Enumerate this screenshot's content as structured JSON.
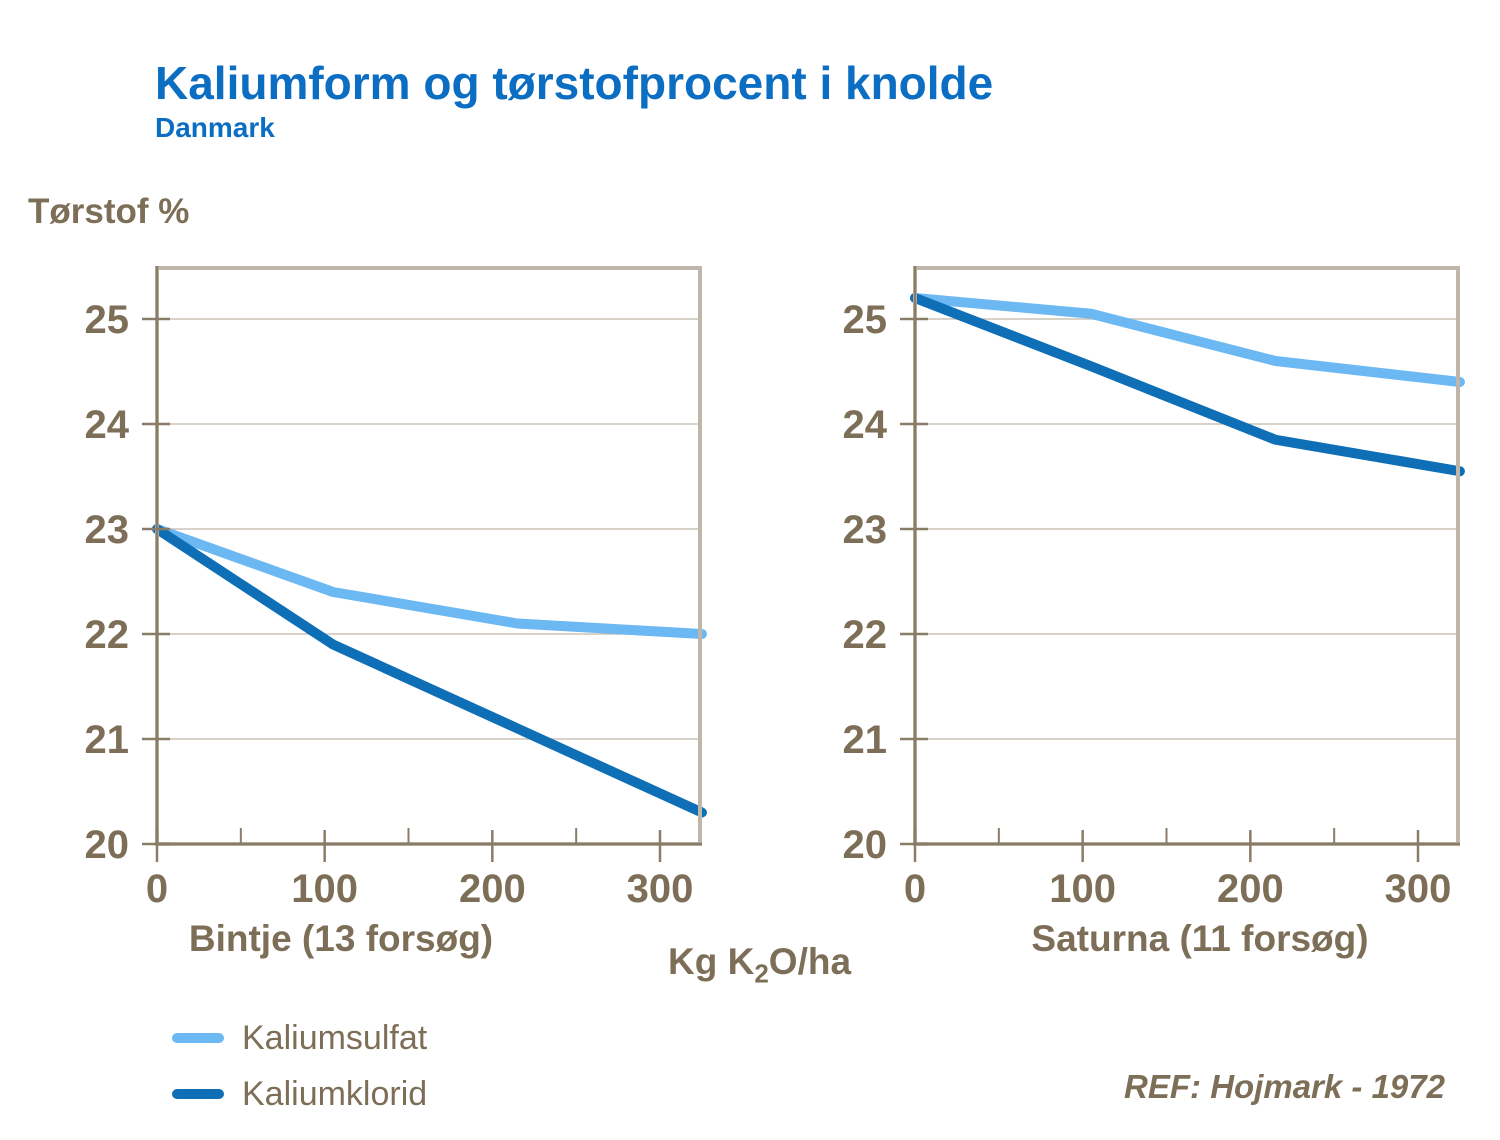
{
  "header": {
    "title": "Kaliumform og tørstofprocent i knolde",
    "subtitle": "Danmark"
  },
  "y_axis_title": "Tørstof %",
  "x_axis_title": {
    "prefix": "Kg K",
    "sub": "2",
    "suffix": "O/ha"
  },
  "legend": [
    {
      "label": "Kaliumsulfat",
      "color": "#6cb8f3"
    },
    {
      "label": "Kaliumklorid",
      "color": "#0e6fb7"
    }
  ],
  "reference": "REF: Hojmark - 1972",
  "colors": {
    "title_blue": "#0c6ec2",
    "text_brown": "#7d6e57",
    "frame": "#bfb6a9",
    "axis": "#8a7d68",
    "gridline": "#cbc3b5",
    "kaliumsulfat": "#6cb8f3",
    "kaliumklorid": "#0e6fb7"
  },
  "chart_data": [
    {
      "type": "line",
      "title": "Bintje (13 forsøg)",
      "xlabel": "Kg K2O/ha",
      "ylabel": "Tørstof %",
      "x": [
        0,
        105,
        215,
        325
      ],
      "x_ticks": [
        0,
        100,
        200,
        300
      ],
      "x_minor_ticks": [
        50,
        150,
        250
      ],
      "y_ticks": [
        20,
        21,
        22,
        23,
        24,
        25
      ],
      "xlim": [
        0,
        325
      ],
      "ylim": [
        20,
        25.5
      ],
      "grid": true,
      "legend_position": "below-left",
      "series": [
        {
          "name": "Kaliumsulfat",
          "color": "#6cb8f3",
          "values": [
            23.0,
            22.4,
            22.1,
            22.0
          ]
        },
        {
          "name": "Kaliumklorid",
          "color": "#0e6fb7",
          "values": [
            23.0,
            21.9,
            21.1,
            20.3
          ]
        }
      ]
    },
    {
      "type": "line",
      "title": "Saturna (11 forsøg)",
      "xlabel": "Kg K2O/ha",
      "ylabel": "Tørstof %",
      "x": [
        0,
        105,
        215,
        325
      ],
      "x_ticks": [
        0,
        100,
        200,
        300
      ],
      "x_minor_ticks": [
        50,
        150,
        250
      ],
      "y_ticks": [
        20,
        21,
        22,
        23,
        24,
        25
      ],
      "xlim": [
        0,
        325
      ],
      "ylim": [
        20,
        25.5
      ],
      "grid": true,
      "legend_position": "below-left",
      "series": [
        {
          "name": "Kaliumsulfat",
          "color": "#6cb8f3",
          "values": [
            25.2,
            25.05,
            24.6,
            24.4
          ]
        },
        {
          "name": "Kaliumklorid",
          "color": "#0e6fb7",
          "values": [
            25.2,
            24.55,
            23.85,
            23.55
          ]
        }
      ]
    }
  ]
}
